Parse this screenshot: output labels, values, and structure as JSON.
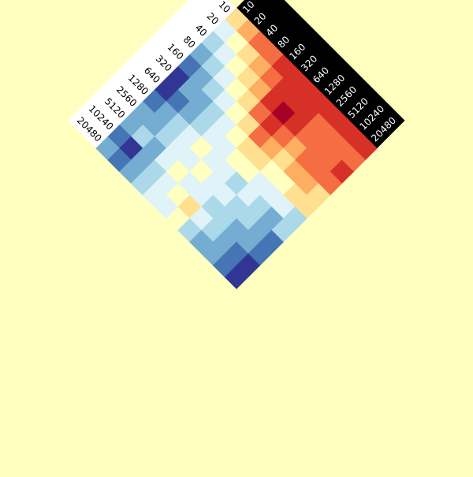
{
  "chart_data": {
    "type": "heatmap",
    "title": "",
    "left_axis": {
      "ticks": [
        "10",
        "20",
        "40",
        "80",
        "160",
        "320",
        "640",
        "1280",
        "2560",
        "5120",
        "10240",
        "20480"
      ]
    },
    "right_axis": {
      "ticks": [
        "10",
        "20",
        "40",
        "80",
        "160",
        "320",
        "640",
        "1280",
        "2560",
        "5120",
        "10240",
        "20480"
      ]
    },
    "palette": [
      "#313695",
      "#4575b4",
      "#74add1",
      "#abd9e9",
      "#e0f3f8",
      "#ffffbf",
      "#fee090",
      "#fdae61",
      "#f46d43",
      "#d73027",
      "#a50026"
    ],
    "background_color": "#ffffc0",
    "left_band_color": "#ffffff",
    "right_band_color": "#000000",
    "value_range": [
      0,
      10
    ],
    "cells": [
      [
        6,
        7,
        8,
        8,
        9,
        9,
        9,
        9,
        9,
        9,
        9,
        9
      ],
      [
        4,
        5,
        6,
        7,
        8,
        9,
        9,
        9,
        8,
        8,
        8,
        8
      ],
      [
        3,
        4,
        5,
        6,
        7,
        9,
        10,
        9,
        8,
        8,
        8,
        9
      ],
      [
        2,
        3,
        4,
        5,
        6,
        8,
        9,
        8,
        7,
        8,
        8,
        8
      ],
      [
        1,
        2,
        3,
        4,
        5,
        6,
        8,
        7,
        6,
        7,
        7,
        6
      ],
      [
        0,
        2,
        2,
        3,
        4,
        5,
        6,
        6,
        5,
        5,
        6,
        6
      ],
      [
        0,
        1,
        2,
        3,
        4,
        4,
        5,
        5,
        4,
        4,
        4,
        3
      ],
      [
        1,
        2,
        3,
        4,
        5,
        4,
        4,
        3,
        4,
        3,
        2,
        3
      ],
      [
        2,
        2,
        3,
        4,
        4,
        5,
        4,
        4,
        3,
        3,
        2,
        1
      ],
      [
        2,
        3,
        2,
        4,
        5,
        4,
        4,
        3,
        3,
        2,
        2,
        1
      ],
      [
        1,
        0,
        2,
        3,
        4,
        5,
        6,
        4,
        3,
        2,
        1,
        0
      ],
      [
        2,
        1,
        2,
        3,
        4,
        4,
        5,
        3,
        2,
        2,
        1,
        0
      ]
    ]
  }
}
